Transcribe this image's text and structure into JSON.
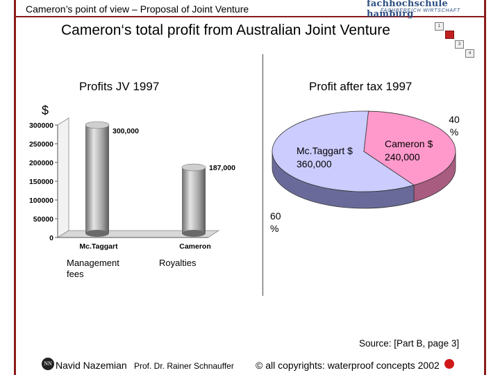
{
  "header": {
    "title": "Cameron’s point of view – Proposal of Joint Venture",
    "logo_line1": "fachhochschule hamburg",
    "logo_line2": "FACHBEREICH WIRTSCHAFT"
  },
  "main_title": "Cameron‘s total profit from Australian Joint Venture",
  "page_indicators": [
    "1",
    "2",
    "3",
    "4"
  ],
  "left_panel": {
    "subtitle": "Profits JV 1997",
    "unit": "$",
    "label_mctaggart": "Management fees",
    "label_cameron": "Royalties"
  },
  "right_panel": {
    "subtitle": "Profit after tax 1997",
    "mctaggart_label": "Mc.Taggart $ 360,000",
    "cameron_label": "Cameron $ 240,000",
    "pct_cameron": "40 %",
    "pct_mctaggart": "60 %"
  },
  "chart_data": [
    {
      "type": "bar",
      "categories": [
        "Mc.Taggart",
        "Cameron"
      ],
      "values": [
        300000,
        187000
      ],
      "data_labels": [
        "300,000",
        "187,000"
      ],
      "y_ticks": [
        0,
        50000,
        100000,
        150000,
        200000,
        250000,
        300000
      ],
      "ylim": [
        0,
        300000
      ],
      "bar_color": "#a8a8a8",
      "grid": false
    },
    {
      "type": "pie",
      "slices": [
        {
          "name": "Mc.Taggart",
          "value": 360000,
          "percent": 60,
          "color": "#ccccff"
        },
        {
          "name": "Cameron",
          "value": 240000,
          "percent": 40,
          "color": "#ff99cc"
        }
      ]
    }
  ],
  "source": "Source: [Part B, page 3]",
  "footer": {
    "author": "Navid Nazemian",
    "prof": "Prof. Dr. Rainer Schnauffer",
    "copyright": "© all copyrights: waterproof concepts 2002"
  }
}
